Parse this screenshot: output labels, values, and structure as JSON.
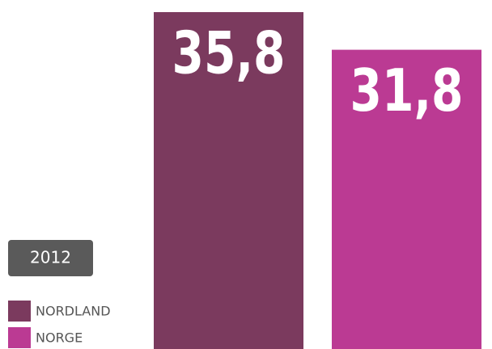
{
  "chart_data": {
    "type": "bar",
    "badge": "2012",
    "categories": [
      "NORDLAND",
      "NORGE"
    ],
    "values": [
      35.8,
      31.8
    ],
    "value_labels": [
      "35,8",
      "31,8"
    ],
    "colors": [
      "#7b3a5e",
      "#bb3a93"
    ]
  }
}
